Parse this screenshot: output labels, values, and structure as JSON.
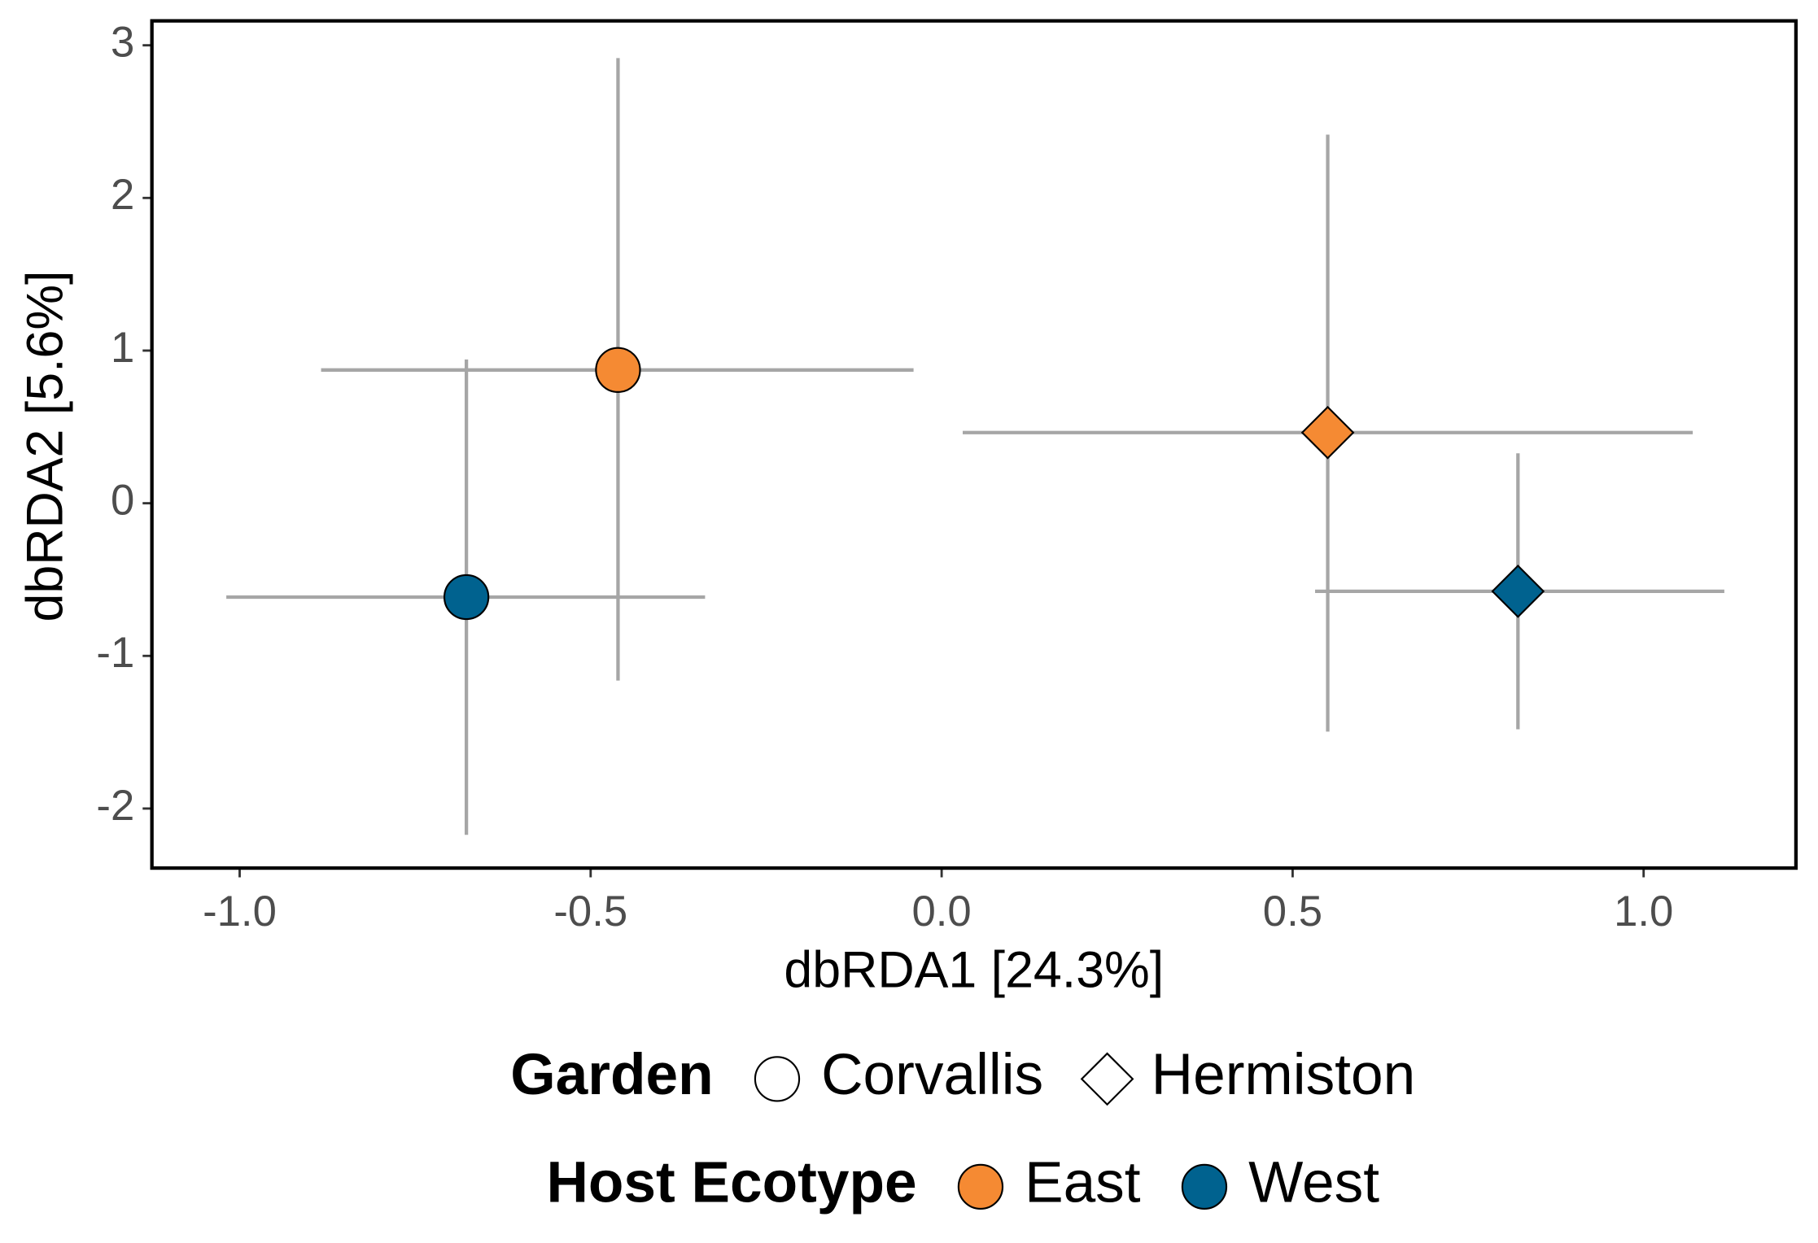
{
  "chart_data": {
    "type": "scatter",
    "x_label": "dbRDA1 [24.3%]",
    "y_label": "dbRDA2 [5.6%]",
    "xlim": [
      -1.125,
      1.217
    ],
    "ylim": [
      -2.39,
      3.16
    ],
    "xticks": [
      {
        "value": -1.0,
        "label": "-1.0"
      },
      {
        "value": -0.5,
        "label": "-0.5"
      },
      {
        "value": 0.0,
        "label": "0.0"
      },
      {
        "value": 0.5,
        "label": "0.5"
      },
      {
        "value": 1.0,
        "label": "1.0"
      }
    ],
    "yticks": [
      -2,
      -1,
      0,
      1,
      2,
      3
    ],
    "errorbar_color": "#a6a6a6",
    "legends": [
      {
        "title": "Garden",
        "entries": [
          {
            "label": "Corvallis",
            "shape": "circle"
          },
          {
            "label": "Hermiston",
            "shape": "diamond"
          }
        ]
      },
      {
        "title": "Host Ecotype",
        "entries": [
          {
            "label": "East",
            "color": "#f58a33"
          },
          {
            "label": "West",
            "color": "#00628f"
          }
        ]
      }
    ],
    "points": [
      {
        "garden": "Corvallis",
        "ecotype": "East",
        "x": -0.461,
        "y": 0.873,
        "xmin": -0.884,
        "xmax": -0.04,
        "ymin": -1.162,
        "ymax": 2.916
      },
      {
        "garden": "Corvallis",
        "ecotype": "West",
        "x": -0.677,
        "y": -0.615,
        "xmin": -1.019,
        "xmax": -0.337,
        "ymin": -2.172,
        "ymax": 0.942
      },
      {
        "garden": "Hermiston",
        "ecotype": "East",
        "x": 0.55,
        "y": 0.463,
        "xmin": 0.03,
        "xmax": 1.07,
        "ymin": -1.496,
        "ymax": 2.415
      },
      {
        "garden": "Hermiston",
        "ecotype": "West",
        "x": 0.821,
        "y": -0.577,
        "xmin": 0.532,
        "xmax": 1.115,
        "ymin": -1.481,
        "ymax": 0.327
      }
    ]
  }
}
